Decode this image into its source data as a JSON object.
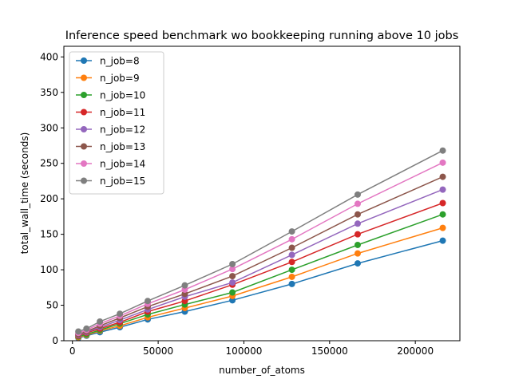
{
  "chart_data": {
    "type": "line",
    "title": "Inference speed benchmark wo bookkeeping running above 10 jobs",
    "xlabel": "number_of_atoms",
    "ylabel": "total_wall_time (seconds)",
    "xlim": [
      -5000,
      226000
    ],
    "ylim": [
      0,
      415
    ],
    "xticks": [
      0,
      50000,
      100000,
      150000,
      200000
    ],
    "yticks": [
      0,
      50,
      100,
      150,
      200,
      250,
      300,
      350,
      400
    ],
    "legend_position": "top-left",
    "x": [
      3456,
      8192,
      16000,
      27648,
      43904,
      65536,
      93312,
      128000,
      166375,
      216000
    ],
    "series": [
      {
        "name": "n_job=8",
        "color": "#1f77b4",
        "values": [
          4,
          7,
          12,
          19,
          30,
          41,
          57,
          80,
          109,
          141
        ]
      },
      {
        "name": "n_job=9",
        "color": "#ff7f0e",
        "values": [
          5,
          8,
          14,
          21,
          33,
          46,
          63,
          90,
          123,
          159
        ]
      },
      {
        "name": "n_job=10",
        "color": "#2ca02c",
        "values": [
          6,
          9,
          15,
          24,
          37,
          51,
          68,
          100,
          135,
          178
        ]
      },
      {
        "name": "n_job=11",
        "color": "#d62728",
        "values": [
          7,
          11,
          17,
          26,
          41,
          56,
          79,
          111,
          150,
          194
        ]
      },
      {
        "name": "n_job=12",
        "color": "#9467bd",
        "values": [
          8,
          12,
          19,
          29,
          44,
          62,
          82,
          121,
          165,
          213
        ]
      },
      {
        "name": "n_job=13",
        "color": "#8c564b",
        "values": [
          9,
          13,
          21,
          32,
          48,
          66,
          91,
          131,
          178,
          231
        ]
      },
      {
        "name": "n_job=14",
        "color": "#e377c2",
        "values": [
          11,
          15,
          24,
          35,
          52,
          72,
          101,
          143,
          193,
          251
        ]
      },
      {
        "name": "n_job=15",
        "color": "#7f7f7f",
        "values": [
          13,
          17,
          27,
          38,
          56,
          78,
          108,
          154,
          206,
          268
        ]
      }
    ]
  }
}
